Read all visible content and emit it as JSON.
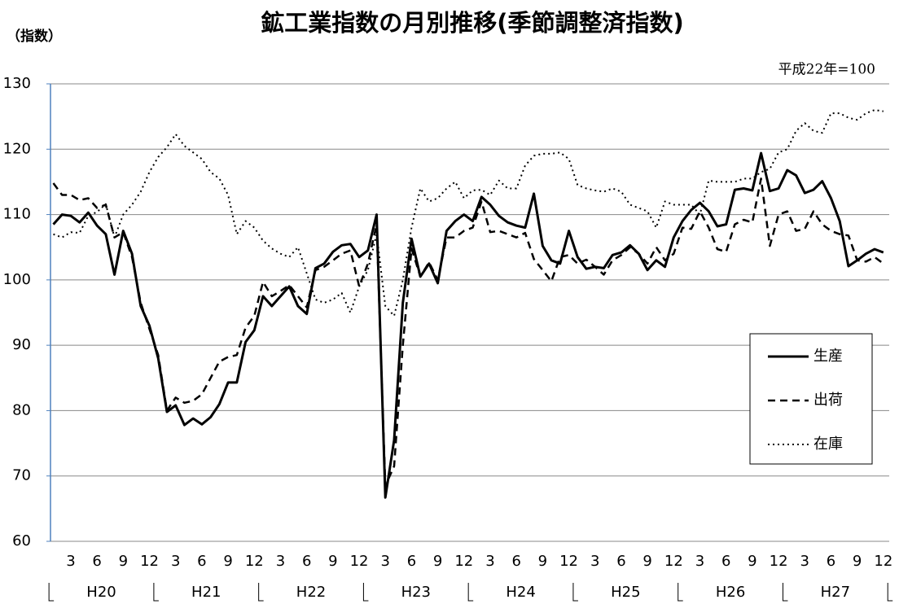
{
  "chart_data": {
    "type": "line",
    "title": "鉱工業指数の月別推移(季節調整済指数)",
    "y_label": "（指数）",
    "note": "平成22年=100",
    "categories": [
      null,
      null,
      "3",
      null,
      null,
      "6",
      null,
      null,
      "9",
      null,
      null,
      "12",
      null,
      null,
      "3",
      null,
      null,
      "6",
      null,
      null,
      "9",
      null,
      null,
      "12",
      null,
      null,
      "3",
      null,
      null,
      "6",
      null,
      null,
      "9",
      null,
      null,
      "12",
      null,
      null,
      "3",
      null,
      null,
      "6",
      null,
      null,
      "9",
      null,
      null,
      "12",
      null,
      null,
      "3",
      null,
      null,
      "6",
      null,
      null,
      "9",
      null,
      null,
      "12",
      null,
      null,
      "3",
      null,
      null,
      "6",
      null,
      null,
      "9",
      null,
      null,
      "12",
      null,
      null,
      "3",
      null,
      null,
      "6",
      null,
      null,
      "9",
      null,
      null,
      "12",
      null,
      null,
      "3",
      null,
      null,
      "6",
      null,
      null,
      "9",
      null,
      null,
      "12"
    ],
    "year_groups": [
      "H20",
      "H21",
      "H22",
      "H23",
      "H24",
      "H25",
      "H26",
      "H27"
    ],
    "ylim": [
      60,
      130
    ],
    "yticks": [
      60,
      70,
      80,
      90,
      100,
      110,
      120,
      130
    ],
    "grid": true,
    "legend": "bottom-right",
    "series": [
      {
        "name": "生産",
        "color": "#000000",
        "dash": "solid",
        "values": [
          108.5,
          110,
          109.8,
          108.8,
          110.3,
          108.3,
          107,
          100.8,
          107.5,
          104,
          96,
          93,
          88,
          79.8,
          80.8,
          77.8,
          78.8,
          77.9,
          79,
          81,
          84.3,
          84.3,
          90.5,
          92.3,
          97.5,
          96,
          97.5,
          99,
          96,
          94.8,
          101.8,
          102.5,
          104.3,
          105.3,
          105.5,
          103.5,
          104.5,
          110,
          66.7,
          75.5,
          96.5,
          106.3,
          100.5,
          102.5,
          99.5,
          107.5,
          109,
          110,
          109,
          112.7,
          111.5,
          109.8,
          108.8,
          108.3,
          108,
          113.2,
          105.2,
          103,
          102.5,
          107.5,
          103.5,
          101.7,
          102,
          101.8,
          103.8,
          104.2,
          105.3,
          104,
          101.5,
          103,
          102,
          106.5,
          109,
          110.7,
          111.8,
          110.5,
          108.2,
          108.5,
          113.8,
          114,
          113.7,
          119.4,
          113.6,
          114,
          116.8,
          116,
          113.3,
          113.8,
          115.1,
          112.5,
          109,
          102.1,
          103,
          104,
          104.7,
          104.2
        ]
      },
      {
        "name": "出荷",
        "color": "#000000",
        "dash": "dashed",
        "values": [
          114.8,
          113,
          113,
          112.2,
          112.5,
          111,
          111.5,
          106.5,
          107.3,
          103.5,
          96.5,
          92.5,
          88.5,
          80,
          82,
          81.2,
          81.5,
          82.5,
          85,
          87.5,
          88.2,
          88.5,
          92.7,
          94.5,
          99.7,
          97.5,
          98.3,
          99.2,
          97.5,
          95.8,
          101.5,
          102,
          103,
          104,
          104.5,
          99,
          102.5,
          108.5,
          68.5,
          71.5,
          90,
          104.8,
          100.5,
          102.7,
          100,
          106.5,
          106.5,
          107.5,
          108,
          112,
          107.3,
          107.5,
          107,
          106.5,
          107.2,
          103.2,
          101.5,
          99.8,
          103.5,
          103.8,
          102.5,
          103.1,
          102,
          100.8,
          103,
          103.8,
          105,
          104,
          102.5,
          105,
          103,
          104,
          108,
          107.8,
          110.5,
          108,
          104.7,
          104.3,
          108.5,
          109.2,
          108.8,
          115.5,
          105.2,
          110,
          110.5,
          107.5,
          107.8,
          110.5,
          108.5,
          107.5,
          107,
          106.8,
          103,
          102.8,
          103.5,
          102.5
        ]
      },
      {
        "name": "在庫",
        "color": "#000000",
        "dash": "dotted",
        "values": [
          107,
          106.5,
          107.3,
          107.2,
          109.8,
          110.4,
          111.6,
          106.5,
          110,
          111.5,
          113.5,
          116.5,
          118.8,
          120.3,
          122.3,
          120.5,
          119.5,
          118.5,
          116.5,
          115.5,
          113,
          107,
          109,
          108,
          106,
          104.8,
          104,
          103.5,
          105,
          101,
          97,
          96.5,
          97,
          98,
          95,
          99,
          101.5,
          107,
          96,
          94.5,
          100,
          108,
          114,
          112,
          112.5,
          114,
          115,
          112.5,
          113.7,
          113.8,
          113,
          115.2,
          114,
          114,
          117.5,
          119,
          119.3,
          119.3,
          119.5,
          118.5,
          114.5,
          114,
          113.7,
          113.5,
          114,
          113.5,
          111.5,
          111,
          110.5,
          108,
          112,
          111.5,
          111.5,
          111.5,
          110,
          115.2,
          115,
          115,
          115,
          115.5,
          115.5,
          116.5,
          117,
          119.5,
          120,
          122.8,
          124,
          122.8,
          122.5,
          125.5,
          125.5,
          124.8,
          124.5,
          125.5,
          126,
          125.8
        ]
      }
    ]
  }
}
